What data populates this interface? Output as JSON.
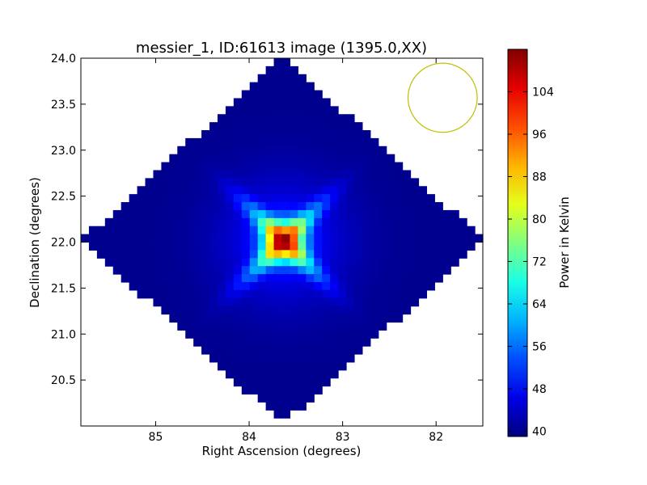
{
  "chart_data": {
    "type": "heatmap",
    "title": "messier_1, ID:61613 image (1395.0,XX)",
    "xlabel": "Right Ascension (degrees)",
    "ylabel": "Declination (degrees)",
    "xlim": [
      85.8,
      81.5
    ],
    "ylim": [
      20.0,
      24.0
    ],
    "x_ticks": [
      85,
      84,
      83,
      82
    ],
    "x_tick_labels": [
      "85",
      "84",
      "83",
      "82"
    ],
    "y_ticks": [
      20.5,
      21.0,
      21.5,
      22.0,
      22.5,
      23.0,
      23.5,
      24.0
    ],
    "y_tick_labels": [
      "20.5",
      "21.0",
      "21.5",
      "22.0",
      "22.5",
      "23.0",
      "23.5",
      "24.0"
    ],
    "colorbar": {
      "label": "Power in Kelvin",
      "range": [
        39,
        112
      ],
      "colormap": "jet",
      "ticks": [
        40,
        48,
        56,
        64,
        72,
        80,
        88,
        96,
        104
      ],
      "tick_labels": [
        "40",
        "48",
        "56",
        "64",
        "72",
        "80",
        "88",
        "96",
        "104"
      ]
    },
    "image": {
      "footprint_shape": "diamond",
      "footprint_center_ra": 83.64,
      "footprint_center_dec": 22.02,
      "footprint_half_width_ra": 2.15,
      "footprint_half_height_dec": 2.0,
      "background_value": 40,
      "source": {
        "ra": 83.63,
        "dec": 22.01,
        "peak_value": 111
      },
      "grid_ra_steps": 50,
      "grid_dec_steps": 46
    },
    "beam_circle": {
      "ra": 81.93,
      "dec": 23.57,
      "radius_deg": 0.37,
      "color": "#bfbf00"
    }
  }
}
